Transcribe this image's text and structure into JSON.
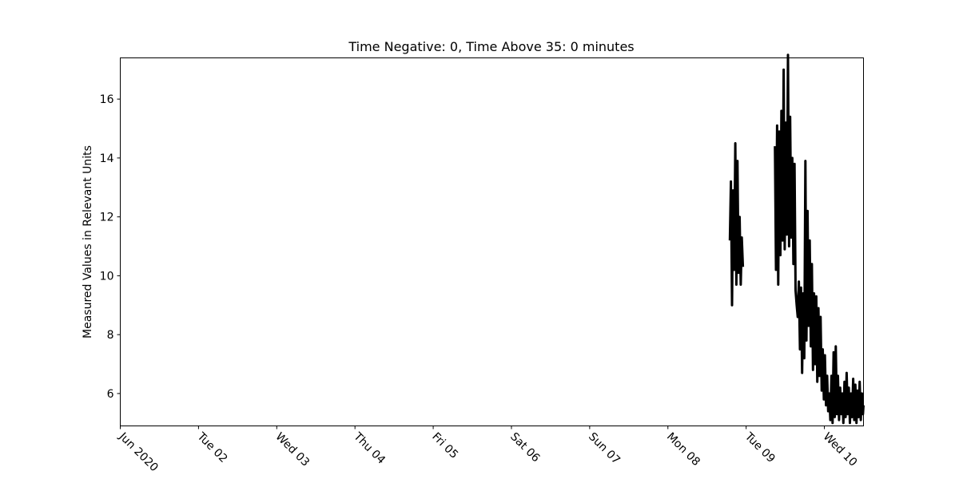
{
  "chart_data": {
    "type": "line",
    "title": "Time Negative: 0, Time Above 35: 0 minutes",
    "xlabel": "",
    "ylabel": "Measured Values in Relevant Units",
    "grid": false,
    "legend": "none",
    "line_color": "#000000",
    "x_range": [
      "2020-06-01T00:00",
      "2020-06-10T12:00"
    ],
    "ylim": [
      4.9,
      17.4
    ],
    "x_ticks": [
      {
        "at": "2020-06-01T00:00",
        "label": "Jun 2020"
      },
      {
        "at": "2020-06-02T00:00",
        "label": "Tue 02"
      },
      {
        "at": "2020-06-03T00:00",
        "label": "Wed 03"
      },
      {
        "at": "2020-06-04T00:00",
        "label": "Thu 04"
      },
      {
        "at": "2020-06-05T00:00",
        "label": "Fri 05"
      },
      {
        "at": "2020-06-06T00:00",
        "label": "Sat 06"
      },
      {
        "at": "2020-06-07T00:00",
        "label": "Sun 07"
      },
      {
        "at": "2020-06-08T00:00",
        "label": "Mon 08"
      },
      {
        "at": "2020-06-09T00:00",
        "label": "Tue 09"
      },
      {
        "at": "2020-06-10T00:00",
        "label": "Wed 10"
      }
    ],
    "y_ticks": [
      6,
      8,
      10,
      12,
      14,
      16
    ],
    "series": [
      {
        "segments": [
          {
            "x": [
              "2020-06-08T19:00",
              "2020-06-08T19:20",
              "2020-06-08T19:40",
              "2020-06-08T20:00",
              "2020-06-08T20:20",
              "2020-06-08T20:40",
              "2020-06-08T21:00",
              "2020-06-08T21:20",
              "2020-06-08T21:40",
              "2020-06-08T22:00",
              "2020-06-08T22:20",
              "2020-06-08T22:40",
              "2020-06-08T23:00"
            ],
            "y": [
              11.2,
              13.2,
              9.0,
              12.9,
              10.2,
              14.5,
              9.7,
              13.9,
              10.1,
              12.0,
              9.7,
              11.3,
              10.3
            ]
          },
          {
            "x": [
              "2020-06-09T08:50",
              "2020-06-09T09:10",
              "2020-06-09T09:30",
              "2020-06-09T09:50",
              "2020-06-09T10:10",
              "2020-06-09T10:30",
              "2020-06-09T10:50",
              "2020-06-09T11:10",
              "2020-06-09T11:30",
              "2020-06-09T11:50",
              "2020-06-09T12:10",
              "2020-06-09T12:30",
              "2020-06-09T12:50",
              "2020-06-09T13:10",
              "2020-06-09T13:30",
              "2020-06-09T13:50",
              "2020-06-09T14:10",
              "2020-06-09T14:30",
              "2020-06-09T14:50",
              "2020-06-09T15:10",
              "2020-06-09T15:30",
              "2020-06-09T15:50",
              "2020-06-09T16:10",
              "2020-06-09T16:30",
              "2020-06-09T16:50",
              "2020-06-09T17:10",
              "2020-06-09T17:30",
              "2020-06-09T17:50",
              "2020-06-09T18:10",
              "2020-06-09T18:30",
              "2020-06-09T18:50",
              "2020-06-09T19:10",
              "2020-06-09T19:30",
              "2020-06-09T19:50",
              "2020-06-09T20:10",
              "2020-06-09T20:30",
              "2020-06-09T20:50",
              "2020-06-09T21:10",
              "2020-06-09T21:30",
              "2020-06-09T21:50",
              "2020-06-09T22:10",
              "2020-06-09T22:30",
              "2020-06-09T22:50",
              "2020-06-09T23:10",
              "2020-06-09T23:30",
              "2020-06-09T23:50",
              "2020-06-10T00:10",
              "2020-06-10T00:30",
              "2020-06-10T00:50",
              "2020-06-10T01:10",
              "2020-06-10T01:30",
              "2020-06-10T01:50",
              "2020-06-10T02:10",
              "2020-06-10T02:30",
              "2020-06-10T02:50",
              "2020-06-10T03:10",
              "2020-06-10T03:30",
              "2020-06-10T03:50",
              "2020-06-10T04:10",
              "2020-06-10T04:30",
              "2020-06-10T04:50",
              "2020-06-10T05:10",
              "2020-06-10T05:30",
              "2020-06-10T05:50",
              "2020-06-10T06:10",
              "2020-06-10T06:30",
              "2020-06-10T06:50",
              "2020-06-10T07:10",
              "2020-06-10T07:30",
              "2020-06-10T07:50",
              "2020-06-10T08:10",
              "2020-06-10T08:30",
              "2020-06-10T08:50",
              "2020-06-10T09:10",
              "2020-06-10T09:30",
              "2020-06-10T09:50",
              "2020-06-10T10:10",
              "2020-06-10T10:30",
              "2020-06-10T10:50",
              "2020-06-10T11:10",
              "2020-06-10T11:30",
              "2020-06-10T11:50",
              "2020-06-10T12:00"
            ],
            "y": [
              14.4,
              10.2,
              15.1,
              9.7,
              14.9,
              10.7,
              15.6,
              11.2,
              17.0,
              10.9,
              15.2,
              11.4,
              17.5,
              11.0,
              15.4,
              11.3,
              14.0,
              10.4,
              13.8,
              9.5,
              9.0,
              8.6,
              9.8,
              7.5,
              9.6,
              6.7,
              9.4,
              7.2,
              13.9,
              7.8,
              12.2,
              8.3,
              11.2,
              7.6,
              10.4,
              6.8,
              9.4,
              7.0,
              9.3,
              6.4,
              8.9,
              6.6,
              8.6,
              6.1,
              7.5,
              5.8,
              7.3,
              5.6,
              6.6,
              5.4,
              6.0,
              5.1,
              6.6,
              5.0,
              7.4,
              5.2,
              7.6,
              5.3,
              6.6,
              5.1,
              6.2,
              5.3,
              6.0,
              5.0,
              6.4,
              5.2,
              6.7,
              5.3,
              6.2,
              5.0,
              6.0,
              5.2,
              6.5,
              5.1,
              6.3,
              5.0,
              6.1,
              5.2,
              6.4,
              5.1,
              6.0,
              5.3,
              5.6
            ]
          }
        ]
      }
    ]
  }
}
